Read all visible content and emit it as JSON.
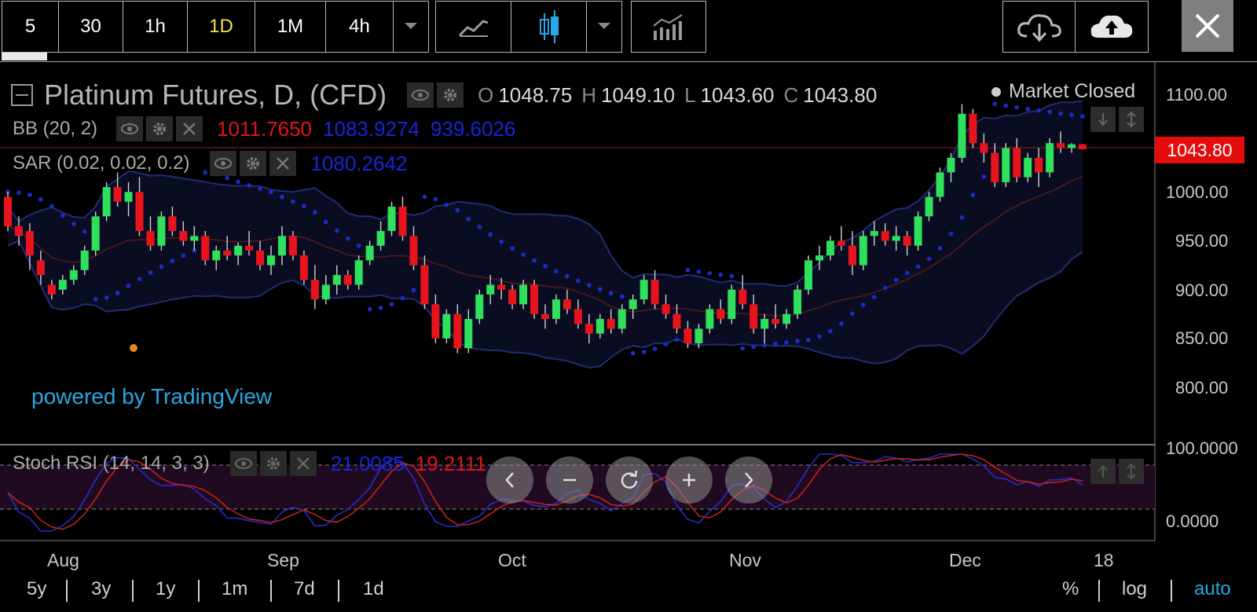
{
  "toolbar": {
    "intervals": [
      "5",
      "30",
      "1h",
      "1D",
      "1M",
      "4h"
    ],
    "active_interval": "1D"
  },
  "legend": {
    "symbol": "Platinum Futures, D, (CFD)",
    "ohlc": [
      {
        "k": "O",
        "v": "1048.75"
      },
      {
        "k": "H",
        "v": "1049.10"
      },
      {
        "k": "L",
        "v": "1043.60"
      },
      {
        "k": "C",
        "v": "1043.80"
      }
    ],
    "bb_name": "BB (20, 2)",
    "bb_values": [
      "1011.7650",
      "1083.9274",
      "939.6026"
    ],
    "sar_name": "SAR (0.02, 0.02, 0.2)",
    "sar_value": "1080.2642",
    "market_status": "Market Closed",
    "powered_by": "powered by TradingView"
  },
  "price_axis": {
    "labels": [
      "1100.00",
      "1000.00",
      "950.00",
      "900.00",
      "850.00",
      "800.00"
    ],
    "last_price": "1043.80"
  },
  "stoch": {
    "name": "Stoch RSI (14, 14, 3, 3)",
    "k_value": "21.0085",
    "d_value": "19.2111",
    "axis_top": "100.0000",
    "axis_bottom": "0.0000"
  },
  "time_axis": [
    "Aug",
    "Sep",
    "Oct",
    "Nov",
    "Dec",
    "18"
  ],
  "ranges": [
    "5y",
    "3y",
    "1y",
    "1m",
    "7d",
    "1d"
  ],
  "scale_options": [
    "%",
    "log",
    "auto"
  ],
  "colors": {
    "up": "#2ee05a",
    "down": "#e8141c",
    "bb_line": "#1e2f7a",
    "sar_dot": "#1a2cc9",
    "accent": "#29a7e1",
    "active": "#f3e04a"
  },
  "chart_data": {
    "type": "candlestick",
    "x_labels": [
      "Aug",
      "Sep",
      "Oct",
      "Nov",
      "Dec",
      "18"
    ],
    "ylim": [
      760,
      1120
    ],
    "candles": [
      [
        995,
        1000,
        960,
        965
      ],
      [
        965,
        975,
        945,
        955
      ],
      [
        960,
        968,
        920,
        935
      ],
      [
        930,
        940,
        905,
        915
      ],
      [
        905,
        910,
        890,
        895
      ],
      [
        900,
        915,
        895,
        910
      ],
      [
        910,
        925,
        905,
        920
      ],
      [
        920,
        945,
        915,
        940
      ],
      [
        940,
        980,
        935,
        975
      ],
      [
        975,
        1010,
        970,
        1005
      ],
      [
        1005,
        1020,
        985,
        990
      ],
      [
        990,
        1010,
        975,
        1000
      ],
      [
        1000,
        1015,
        955,
        960
      ],
      [
        960,
        975,
        940,
        945
      ],
      [
        945,
        980,
        940,
        975
      ],
      [
        975,
        985,
        955,
        960
      ],
      [
        960,
        970,
        945,
        950
      ],
      [
        950,
        965,
        940,
        955
      ],
      [
        955,
        960,
        925,
        930
      ],
      [
        930,
        945,
        920,
        940
      ],
      [
        940,
        955,
        930,
        935
      ],
      [
        935,
        948,
        925,
        945
      ],
      [
        945,
        960,
        935,
        940
      ],
      [
        940,
        950,
        920,
        925
      ],
      [
        925,
        945,
        915,
        935
      ],
      [
        935,
        965,
        925,
        955
      ],
      [
        955,
        960,
        930,
        935
      ],
      [
        935,
        940,
        905,
        910
      ],
      [
        910,
        925,
        880,
        890
      ],
      [
        890,
        915,
        885,
        905
      ],
      [
        905,
        925,
        895,
        915
      ],
      [
        915,
        920,
        900,
        905
      ],
      [
        905,
        935,
        900,
        930
      ],
      [
        930,
        950,
        925,
        945
      ],
      [
        945,
        970,
        940,
        960
      ],
      [
        960,
        990,
        955,
        985
      ],
      [
        985,
        995,
        950,
        955
      ],
      [
        955,
        965,
        920,
        925
      ],
      [
        925,
        935,
        880,
        885
      ],
      [
        885,
        895,
        845,
        850
      ],
      [
        850,
        880,
        845,
        875
      ],
      [
        875,
        885,
        835,
        840
      ],
      [
        840,
        880,
        835,
        870
      ],
      [
        870,
        900,
        865,
        895
      ],
      [
        895,
        915,
        885,
        905
      ],
      [
        905,
        912,
        890,
        900
      ],
      [
        900,
        905,
        880,
        885
      ],
      [
        885,
        910,
        880,
        905
      ],
      [
        905,
        910,
        870,
        875
      ],
      [
        875,
        885,
        860,
        870
      ],
      [
        870,
        895,
        865,
        890
      ],
      [
        890,
        900,
        875,
        880
      ],
      [
        880,
        890,
        860,
        865
      ],
      [
        865,
        875,
        845,
        855
      ],
      [
        855,
        875,
        850,
        870
      ],
      [
        870,
        880,
        855,
        860
      ],
      [
        860,
        885,
        855,
        880
      ],
      [
        880,
        895,
        870,
        890
      ],
      [
        890,
        915,
        885,
        910
      ],
      [
        910,
        920,
        880,
        885
      ],
      [
        885,
        895,
        870,
        875
      ],
      [
        875,
        885,
        855,
        860
      ],
      [
        860,
        868,
        840,
        845
      ],
      [
        845,
        865,
        840,
        860
      ],
      [
        860,
        885,
        855,
        880
      ],
      [
        880,
        890,
        865,
        870
      ],
      [
        870,
        905,
        865,
        900
      ],
      [
        900,
        915,
        880,
        885
      ],
      [
        885,
        895,
        855,
        860
      ],
      [
        860,
        875,
        845,
        870
      ],
      [
        870,
        885,
        860,
        865
      ],
      [
        865,
        880,
        860,
        875
      ],
      [
        875,
        905,
        870,
        900
      ],
      [
        900,
        935,
        895,
        930
      ],
      [
        930,
        945,
        920,
        935
      ],
      [
        935,
        955,
        930,
        950
      ],
      [
        950,
        965,
        940,
        945
      ],
      [
        945,
        960,
        915,
        925
      ],
      [
        925,
        960,
        920,
        955
      ],
      [
        955,
        970,
        945,
        960
      ],
      [
        960,
        968,
        945,
        950
      ],
      [
        950,
        965,
        940,
        955
      ],
      [
        955,
        960,
        935,
        945
      ],
      [
        945,
        980,
        940,
        975
      ],
      [
        975,
        1000,
        970,
        995
      ],
      [
        995,
        1025,
        990,
        1020
      ],
      [
        1020,
        1040,
        1010,
        1035
      ],
      [
        1035,
        1090,
        1030,
        1080
      ],
      [
        1080,
        1085,
        1045,
        1050
      ],
      [
        1050,
        1060,
        1030,
        1040
      ],
      [
        1040,
        1050,
        1005,
        1010
      ],
      [
        1010,
        1050,
        1005,
        1045
      ],
      [
        1045,
        1055,
        1010,
        1015
      ],
      [
        1015,
        1040,
        1010,
        1035
      ],
      [
        1035,
        1045,
        1005,
        1020
      ],
      [
        1020,
        1055,
        1015,
        1050
      ],
      [
        1050,
        1062,
        1040,
        1045
      ],
      [
        1045,
        1050,
        1040,
        1048.75
      ],
      [
        1048.75,
        1049.1,
        1043.6,
        1043.8
      ]
    ]
  }
}
